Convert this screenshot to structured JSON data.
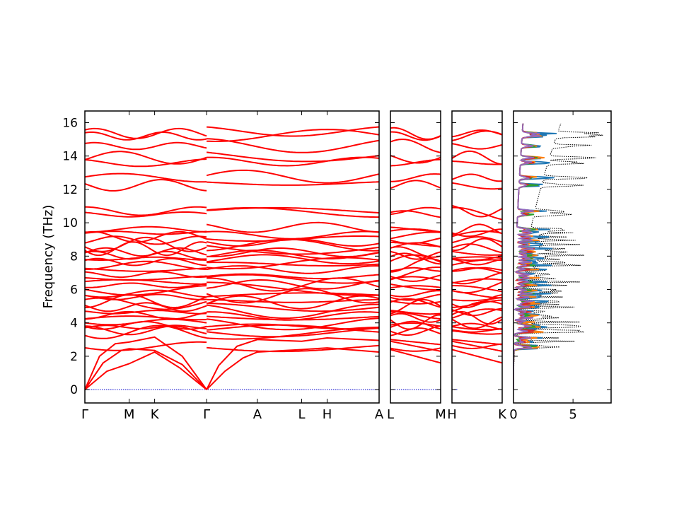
{
  "chart_data": {
    "type": "line",
    "ylabel": "Frequency (THz)",
    "ylim": [
      -0.8,
      16.7
    ],
    "yticks": [
      0,
      2,
      4,
      6,
      8,
      10,
      12,
      14,
      16
    ],
    "series_color": "#ff0000",
    "zero_line_color": "#0000cc",
    "panels": [
      {
        "id": "band-main",
        "kpoints": [
          {
            "label": "Γ",
            "x": 0.0
          },
          {
            "label": "M",
            "x": 0.364
          },
          {
            "label": "K",
            "x": 0.573
          },
          {
            "label": "Γ",
            "x": 1.0
          },
          {
            "label": "A",
            "x": 1.417
          },
          {
            "label": "L",
            "x": 1.781
          },
          {
            "label": "H",
            "x": 1.99
          },
          {
            "label": "A",
            "x": 2.417
          }
        ],
        "acoustic": [
          {
            "x": [
              0,
              0.18,
              0.364,
              0.573,
              0.78,
              1.0
            ],
            "y": [
              0,
              1.1,
              1.55,
              2.25,
              1.3,
              0
            ]
          },
          {
            "x": [
              0,
              0.15,
              0.3,
              0.364,
              0.573,
              0.8,
              1.0
            ],
            "y": [
              0,
              1.6,
              2.35,
              2.45,
              2.35,
              1.5,
              0
            ]
          },
          {
            "x": [
              0,
              0.12,
              0.25,
              0.364,
              0.573,
              0.8,
              1.0
            ],
            "y": [
              0,
              2.0,
              2.75,
              2.85,
              3.15,
              2.0,
              0
            ]
          },
          {
            "x": [
              1.0,
              1.15,
              1.3,
              1.417,
              1.781,
              1.99,
              2.417
            ],
            "y": [
              0,
              1.1,
              1.9,
              2.25,
              2.4,
              2.5,
              2.25
            ]
          },
          {
            "x": [
              1.0,
              1.1,
              1.25,
              1.417,
              1.781,
              1.99,
              2.417
            ],
            "y": [
              0,
              1.45,
              2.6,
              3.0,
              2.9,
              3.1,
              2.95
            ]
          }
        ],
        "optical": [
          2.6,
          3.45,
          3.55,
          3.75,
          3.85,
          4.05,
          4.3,
          4.45,
          4.65,
          4.95,
          5.15,
          5.3,
          5.55,
          5.75,
          5.95,
          6.25,
          6.45,
          6.7,
          6.9,
          7.2,
          7.45,
          7.65,
          7.85,
          8.05,
          8.25,
          8.45,
          8.7,
          8.95,
          9.15,
          9.4,
          9.6,
          10.5,
          10.7,
          12.25,
          12.7,
          13.6,
          13.9,
          14.6,
          15.2,
          15.35
        ]
      },
      {
        "id": "band-LM",
        "kpoints": [
          {
            "label": "L",
            "x": 0
          },
          {
            "label": "M",
            "x": 1
          }
        ]
      },
      {
        "id": "band-HK",
        "kpoints": [
          {
            "label": "H",
            "x": 0
          },
          {
            "label": "K",
            "x": 1
          }
        ]
      }
    ],
    "dos": {
      "xticks": [
        0,
        5
      ],
      "xlim": [
        0,
        8.2
      ],
      "series": [
        {
          "color": "#000000",
          "style": "dotted"
        },
        {
          "color": "#1f77b4"
        },
        {
          "color": "#ff7f0e"
        },
        {
          "color": "#2ca02c"
        },
        {
          "color": "#d62728"
        },
        {
          "color": "#9467bd"
        }
      ]
    }
  }
}
